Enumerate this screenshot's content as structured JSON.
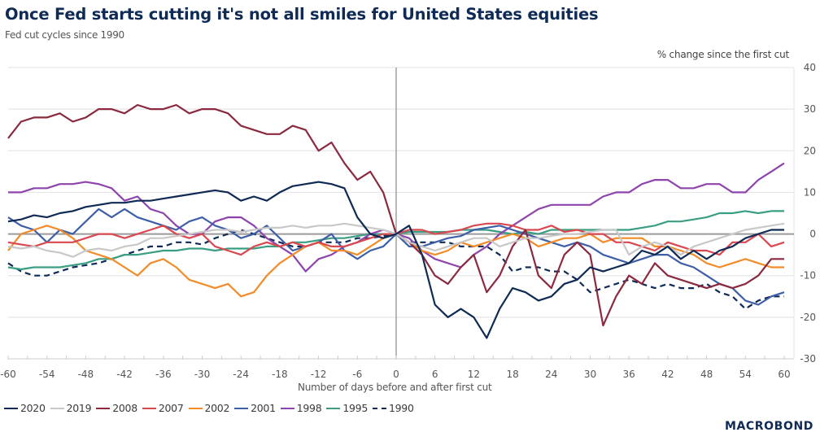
{
  "header": {
    "title": "Once Fed starts cutting it's not all smiles for United States equities",
    "subtitle": "Fed cut cycles since 1990",
    "y_unit": "% change since the first cut"
  },
  "footer": {
    "logo": "MACROBOND"
  },
  "chart_data": {
    "type": "line",
    "title": "Once Fed starts cutting it's not all smiles for United States equities",
    "subtitle": "Fed cut cycles since 1990",
    "xlabel": "Number of days before and after first cut",
    "ylabel": "% change since the first cut",
    "xlim": [
      -60,
      60
    ],
    "ylim": [
      -30,
      40
    ],
    "x_ticks": [
      -60,
      -54,
      -48,
      -42,
      -36,
      -30,
      -24,
      -18,
      -12,
      -6,
      0,
      6,
      12,
      18,
      24,
      30,
      36,
      42,
      48,
      54,
      60
    ],
    "y_ticks": [
      40,
      30,
      20,
      10,
      0,
      -10,
      -20,
      -30
    ],
    "y_axis_side": "right",
    "grid": true,
    "legend_position": "bottom-left",
    "x": [
      -60,
      -58,
      -56,
      -54,
      -52,
      -50,
      -48,
      -46,
      -44,
      -42,
      -40,
      -38,
      -36,
      -34,
      -32,
      -30,
      -28,
      -26,
      -24,
      -22,
      -20,
      -18,
      -16,
      -14,
      -12,
      -10,
      -8,
      -6,
      -4,
      -2,
      0,
      2,
      4,
      6,
      8,
      10,
      12,
      14,
      16,
      18,
      20,
      22,
      24,
      26,
      28,
      30,
      32,
      34,
      36,
      38,
      40,
      42,
      44,
      46,
      48,
      50,
      52,
      54,
      56,
      58,
      60
    ],
    "series": [
      {
        "name": "2020",
        "color": "#0f2a54",
        "dash": false,
        "values": [
          3,
          3.5,
          4.5,
          4,
          5,
          5.5,
          6.5,
          7,
          7.5,
          7.5,
          8,
          8,
          8.5,
          9,
          9.5,
          10,
          10.5,
          10,
          8,
          9,
          8,
          10,
          11.5,
          12,
          12.5,
          12,
          11,
          4,
          0,
          -1,
          0,
          2,
          -5,
          -17,
          -20,
          -18,
          -20,
          -25,
          -18,
          -13,
          -14,
          -16,
          -15,
          -12,
          -11,
          -8,
          -9,
          -8,
          -7,
          -4,
          -5,
          -3,
          -6,
          -4,
          -6,
          -4,
          -3,
          -1,
          0,
          1,
          1
        ]
      },
      {
        "name": "2019",
        "color": "#c8c8c8",
        "dash": false,
        "values": [
          -3,
          -3.5,
          -3,
          -4,
          -4.5,
          -5.5,
          -4,
          -3.5,
          -4,
          -3,
          -2.5,
          -1,
          -1,
          -0.5,
          0,
          0.5,
          1,
          1,
          0.5,
          1,
          1.5,
          1.5,
          2,
          1.5,
          2,
          2,
          2.5,
          2,
          1.5,
          1,
          0,
          -2,
          -3,
          -4,
          -3,
          -2,
          -1,
          -1,
          -3,
          -2,
          -1,
          -1,
          -0.5,
          0,
          0,
          0.5,
          1,
          1,
          -5,
          -3,
          -2,
          -3,
          -5,
          -3,
          -2,
          -1,
          0,
          1,
          1.5,
          2,
          2.5
        ]
      },
      {
        "name": "2008",
        "color": "#8b2a3f",
        "dash": false,
        "values": [
          23,
          27,
          28,
          28,
          29,
          27,
          28,
          30,
          30,
          29,
          31,
          30,
          30,
          31,
          29,
          30,
          30,
          29,
          26,
          25,
          24,
          24,
          26,
          25,
          20,
          22,
          17,
          13,
          15,
          10,
          0,
          -2,
          -5,
          -10,
          -12,
          -8,
          -5,
          -14,
          -10,
          -3,
          1,
          -10,
          -13,
          -5,
          -2,
          -5,
          -22,
          -15,
          -10,
          -12,
          -7,
          -10,
          -11,
          -12,
          -13,
          -12,
          -13,
          -12,
          -10,
          -6,
          -6
        ]
      },
      {
        "name": "2007",
        "color": "#d9474f",
        "dash": false,
        "values": [
          -2,
          -2.5,
          -3,
          -2,
          -2,
          -2,
          -1,
          0,
          0,
          -1,
          0,
          1,
          2,
          0,
          -1,
          0,
          -3,
          -4,
          -5,
          -3,
          -2,
          -3,
          -2,
          -3,
          -2,
          -3,
          -3,
          -2,
          -1,
          0,
          0,
          1,
          1,
          0,
          0.5,
          1,
          2,
          2.5,
          2.5,
          2,
          1,
          1,
          2,
          0.5,
          1,
          0,
          0,
          -2,
          -2,
          -3,
          -4,
          -2,
          -3,
          -4,
          -4,
          -5,
          -2,
          -2,
          0,
          -3,
          -2
        ]
      },
      {
        "name": "2002",
        "color": "#f28c28",
        "dash": false,
        "values": [
          -4,
          0,
          1,
          2,
          1,
          -1,
          -4,
          -5,
          -6,
          -8,
          -10,
          -7,
          -6,
          -8,
          -11,
          -12,
          -13,
          -12,
          -15,
          -14,
          -10,
          -7,
          -5,
          -3,
          -2,
          -4,
          -4,
          -5,
          -3,
          -1,
          0,
          -2,
          -4,
          -5,
          -4,
          -2,
          -3,
          -2,
          -1,
          0,
          -1,
          -3,
          -2,
          -1,
          -1,
          0,
          -2,
          -1,
          -1,
          -1,
          -3,
          -3,
          -4,
          -5,
          -7,
          -8,
          -7,
          -6,
          -7,
          -8,
          -8
        ]
      },
      {
        "name": "2001",
        "color": "#3e5fa7",
        "dash": false,
        "values": [
          4,
          2,
          1,
          -2,
          1,
          0,
          3,
          6,
          4,
          6,
          4,
          3,
          2,
          1,
          3,
          4,
          2,
          1,
          -1,
          0,
          2,
          -1,
          -4,
          -3,
          -2,
          0,
          -4,
          -6,
          -4,
          -3,
          0,
          -3,
          -3,
          -2,
          -1,
          -0.5,
          1,
          1.5,
          2,
          1,
          0,
          -1,
          -2,
          -3,
          -2,
          -3,
          -5,
          -6,
          -7,
          -6,
          -5,
          -5,
          -7,
          -8,
          -10,
          -12,
          -13,
          -16,
          -17,
          -15,
          -14
        ]
      },
      {
        "name": "1998",
        "color": "#8e44ad",
        "dash": false,
        "values": [
          10,
          10,
          11,
          11,
          12,
          12,
          12.5,
          12,
          11,
          8,
          9,
          6,
          5,
          2,
          0,
          0,
          3,
          4,
          4,
          2,
          -1,
          -3,
          -5,
          -9,
          -6,
          -5,
          -3,
          -2,
          0,
          1,
          0,
          -1,
          -4,
          -6,
          -7,
          -8,
          -5,
          -3,
          0,
          2,
          4,
          6,
          7,
          7,
          7,
          7,
          9,
          10,
          10,
          12,
          13,
          13,
          11,
          11,
          12,
          12,
          10,
          10,
          13,
          15,
          17
        ]
      },
      {
        "name": "1995",
        "color": "#3a9e82",
        "dash": false,
        "values": [
          -8,
          -8.5,
          -8,
          -8,
          -8,
          -7.5,
          -7,
          -6,
          -6,
          -5,
          -5,
          -4.5,
          -4,
          -4,
          -3.5,
          -3.5,
          -4,
          -3.5,
          -3.5,
          -3.5,
          -3,
          -3,
          -2,
          -2,
          -1.5,
          -1,
          -1,
          -0.5,
          0,
          0,
          0,
          0.5,
          0.5,
          0.5,
          0.5,
          1,
          1,
          1,
          0.5,
          0,
          0.5,
          0,
          1,
          1,
          1,
          1,
          1,
          1,
          1,
          1.5,
          2,
          3,
          3,
          3.5,
          4,
          5,
          5,
          5.5,
          5,
          5.5,
          5.5
        ]
      },
      {
        "name": "1990",
        "color": "#0f2a54",
        "dash": true,
        "values": [
          -7,
          -9,
          -10,
          -10,
          -9,
          -8,
          -7.5,
          -7,
          -6,
          -5,
          -4,
          -3,
          -3,
          -2,
          -2,
          -2.5,
          -1,
          0,
          1,
          0,
          -1,
          -2,
          -3,
          -3,
          -2,
          -2,
          -2,
          -1,
          -1,
          -0.5,
          0,
          -2,
          -2,
          -2,
          -2,
          -3,
          -3,
          -3,
          -5,
          -9,
          -8,
          -8,
          -9,
          -9,
          -11,
          -14,
          -13,
          -12,
          -11,
          -12,
          -13,
          -12,
          -13,
          -13,
          -12,
          -14,
          -15,
          -18,
          -16,
          -15,
          -15
        ]
      }
    ]
  }
}
